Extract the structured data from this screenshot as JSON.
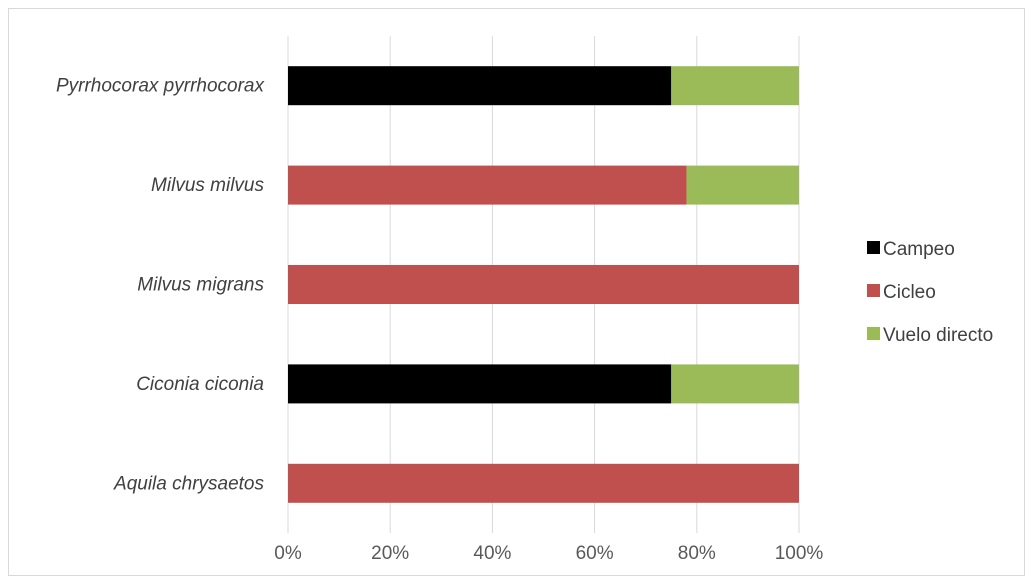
{
  "chart_data": {
    "type": "bar",
    "orientation": "horizontal",
    "stacked": "percent",
    "title": "",
    "xlabel": "",
    "ylabel": "",
    "xlim": [
      0,
      100
    ],
    "x_ticks": [
      "0%",
      "20%",
      "40%",
      "60%",
      "80%",
      "100%"
    ],
    "categories": [
      "Aquila chrysaetos",
      "Ciconia ciconia",
      "Milvus migrans",
      "Milvus milvus",
      "Pyrrhocorax pyrrhocorax"
    ],
    "series": [
      {
        "name": "Campeo",
        "color": "#000000",
        "values": [
          0,
          75,
          0,
          0,
          75
        ]
      },
      {
        "name": "Cicleo",
        "color": "#c0504d",
        "values": [
          100,
          0,
          100,
          78,
          0
        ]
      },
      {
        "name": "Vuelo directo",
        "color": "#9bbb59",
        "values": [
          0,
          25,
          0,
          22,
          25
        ]
      }
    ],
    "grid": true,
    "legend_position": "right"
  }
}
